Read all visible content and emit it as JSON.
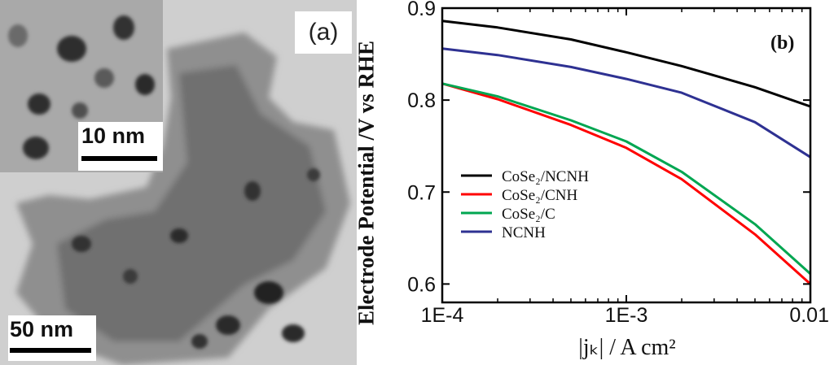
{
  "panel_a": {
    "label": "(a)",
    "inset_scale": "10 nm",
    "main_scale": "50 nm"
  },
  "chart_data": {
    "type": "line",
    "panel_label": "(b)",
    "xlabel": "|jₖ| / A cm²",
    "ylabel": "Electrode Potential /V vs RHE",
    "x_scale": "log",
    "xlim": [
      0.0001,
      0.01
    ],
    "ylim": [
      0.58,
      0.9
    ],
    "x_ticks": [
      0.0001,
      0.001,
      0.01
    ],
    "x_tick_labels": [
      "1E-4",
      "1E-3",
      "0.01"
    ],
    "y_ticks": [
      0.6,
      0.7,
      0.8,
      0.9
    ],
    "y_tick_labels": [
      "0.6",
      "0.7",
      "0.8",
      "0.9"
    ],
    "grid": false,
    "legend_position": "bottom-left",
    "series": [
      {
        "name": "CoSe₂/NCNH",
        "color": "#000000",
        "x": [
          0.0001,
          0.0002,
          0.0005,
          0.001,
          0.002,
          0.005,
          0.01
        ],
        "y": [
          0.886,
          0.879,
          0.866,
          0.852,
          0.837,
          0.814,
          0.793
        ]
      },
      {
        "name": "CoSe₂/CNH",
        "color": "#ff0000",
        "x": [
          0.0001,
          0.0002,
          0.0005,
          0.001,
          0.002,
          0.005,
          0.01
        ],
        "y": [
          0.818,
          0.801,
          0.773,
          0.748,
          0.714,
          0.654,
          0.6
        ]
      },
      {
        "name": "CoSe₂/C",
        "color": "#00a651",
        "x": [
          0.0001,
          0.0002,
          0.0005,
          0.001,
          0.002,
          0.005,
          0.01
        ],
        "y": [
          0.818,
          0.804,
          0.778,
          0.755,
          0.722,
          0.665,
          0.611
        ]
      },
      {
        "name": "NCNH",
        "color": "#2e3192",
        "x": [
          0.0001,
          0.0002,
          0.0005,
          0.001,
          0.002,
          0.005,
          0.01
        ],
        "y": [
          0.856,
          0.849,
          0.836,
          0.823,
          0.808,
          0.776,
          0.738
        ]
      }
    ]
  }
}
